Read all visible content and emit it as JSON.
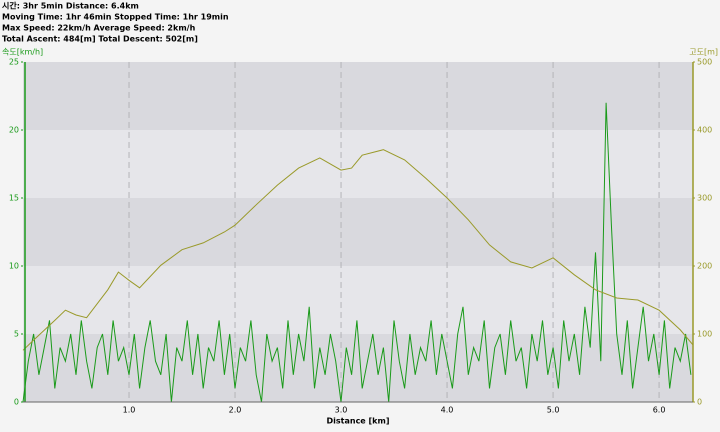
{
  "chart_data": {
    "type": "line",
    "annotations": [
      "시간: 3hr 5min  Distance: 6.4km",
      "Moving Time: 1hr 46min  Stopped Time: 1hr 19min",
      "Max Speed: 22km/h  Average Speed: 2km/h",
      "Total Ascent: 484[m]  Total Descent: 502[m]"
    ],
    "y_label": "속도[km/h]",
    "y2_label": "고도[m]",
    "x_label": "Distance [km]",
    "xlim": [
      0,
      6.32
    ],
    "xticks": [
      {
        "value": 1,
        "label": "1.0"
      },
      {
        "value": 2,
        "label": "2.0"
      },
      {
        "value": 3,
        "label": "3.0"
      },
      {
        "value": 4,
        "label": "4.0"
      },
      {
        "value": 5,
        "label": "5.0"
      },
      {
        "value": 6,
        "label": "6.0"
      }
    ],
    "ylim": [
      0,
      25
    ],
    "yticks": [
      0,
      5,
      10,
      15,
      20,
      25
    ],
    "y2lim": [
      0,
      500
    ],
    "y2ticks": [
      0,
      100,
      200,
      300,
      400,
      500
    ],
    "grid": true,
    "series": [
      {
        "color": "#1a9a1a",
        "axis": "y",
        "x": [
          0,
          0.05,
          0.1,
          0.15,
          0.2,
          0.25,
          0.3,
          0.35,
          0.4,
          0.45,
          0.5,
          0.55,
          0.6,
          0.65,
          0.7,
          0.75,
          0.8,
          0.85,
          0.9,
          0.95,
          1,
          1.05,
          1.1,
          1.15,
          1.2,
          1.25,
          1.3,
          1.35,
          1.4,
          1.45,
          1.5,
          1.55,
          1.6,
          1.65,
          1.7,
          1.75,
          1.8,
          1.85,
          1.9,
          1.95,
          2,
          2.05,
          2.1,
          2.15,
          2.2,
          2.25,
          2.3,
          2.35,
          2.4,
          2.45,
          2.5,
          2.55,
          2.6,
          2.65,
          2.7,
          2.75,
          2.8,
          2.85,
          2.9,
          2.95,
          3,
          3.05,
          3.1,
          3.15,
          3.2,
          3.25,
          3.3,
          3.35,
          3.4,
          3.45,
          3.5,
          3.55,
          3.6,
          3.65,
          3.7,
          3.75,
          3.8,
          3.85,
          3.9,
          3.95,
          4,
          4.05,
          4.1,
          4.15,
          4.2,
          4.25,
          4.3,
          4.35,
          4.4,
          4.45,
          4.5,
          4.55,
          4.6,
          4.65,
          4.7,
          4.75,
          4.8,
          4.85,
          4.9,
          4.95,
          5,
          5.05,
          5.1,
          5.15,
          5.2,
          5.25,
          5.3,
          5.35,
          5.4,
          5.45,
          5.5,
          5.55,
          5.6,
          5.65,
          5.7,
          5.75,
          5.8,
          5.85,
          5.9,
          5.95,
          6,
          6.05,
          6.1,
          6.15,
          6.2,
          6.25,
          6.3
        ],
        "values": [
          0,
          3,
          5,
          2,
          4,
          6,
          1,
          4,
          3,
          5,
          2,
          6,
          3,
          1,
          4,
          5,
          2,
          6,
          3,
          4,
          2,
          5,
          1,
          4,
          6,
          3,
          2,
          5,
          0,
          4,
          3,
          6,
          2,
          5,
          1,
          4,
          3,
          6,
          2,
          5,
          1,
          4,
          3,
          6,
          2,
          0,
          5,
          3,
          4,
          1,
          6,
          2,
          5,
          3,
          7,
          1,
          4,
          2,
          5,
          3,
          0,
          4,
          2,
          6,
          1,
          3,
          5,
          2,
          4,
          0,
          6,
          3,
          1,
          5,
          2,
          4,
          3,
          6,
          2,
          5,
          3,
          1,
          5,
          7,
          2,
          4,
          3,
          6,
          1,
          4,
          5,
          2,
          6,
          3,
          4,
          1,
          5,
          3,
          6,
          2,
          4,
          1,
          6,
          3,
          5,
          2,
          7,
          4,
          11,
          3,
          22,
          13,
          5,
          2,
          6,
          1,
          4,
          7,
          3,
          5,
          2,
          6,
          1,
          4,
          3,
          5,
          2
        ]
      },
      {
        "color": "#9a9a2a",
        "axis": "y2",
        "x": [
          0,
          0.1,
          0.3,
          0.4,
          0.5,
          0.6,
          0.8,
          0.9,
          1.0,
          1.1,
          1.3,
          1.5,
          1.7,
          1.9,
          2.0,
          2.2,
          2.4,
          2.6,
          2.8,
          3.0,
          3.1,
          3.2,
          3.4,
          3.6,
          3.8,
          4.0,
          4.2,
          4.4,
          4.6,
          4.8,
          5.0,
          5.2,
          5.4,
          5.6,
          5.8,
          6.0,
          6.2,
          6.32
        ],
        "values": [
          76,
          91,
          120,
          135,
          128,
          124,
          165,
          191,
          179,
          168,
          201,
          224,
          234,
          250,
          260,
          290,
          319,
          344,
          359,
          341,
          344,
          363,
          371,
          356,
          329,
          300,
          268,
          231,
          206,
          197,
          212,
          187,
          165,
          153,
          150,
          135,
          106,
          84
        ]
      }
    ]
  }
}
